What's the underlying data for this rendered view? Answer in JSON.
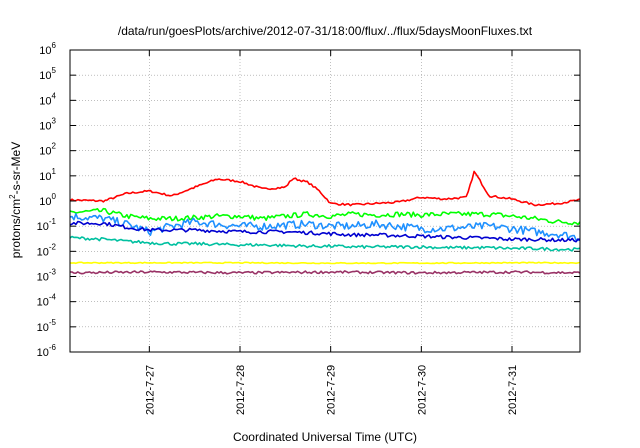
{
  "chart_data": {
    "type": "line",
    "title": "/data/run/goesPlots/archive/2012-07-31/18:00/flux/../flux/5daysMoonFluxes.txt",
    "xlabel": "Coordinated Universal Time (UTC)",
    "ylabel_parts": [
      "protons/cm",
      "2",
      "-s-sr-MeV"
    ],
    "y_scale": "log",
    "ylim": [
      1e-06,
      1000000.0
    ],
    "y_ticks": [
      {
        "base": "10",
        "exp": "6",
        "value": 1000000.0
      },
      {
        "base": "10",
        "exp": "5",
        "value": 100000.0
      },
      {
        "base": "10",
        "exp": "4",
        "value": 10000.0
      },
      {
        "base": "10",
        "exp": "3",
        "value": 1000.0
      },
      {
        "base": "10",
        "exp": "2",
        "value": 100.0
      },
      {
        "base": "10",
        "exp": "1",
        "value": 10.0
      },
      {
        "base": "10",
        "exp": "0",
        "value": 1.0
      },
      {
        "base": "10",
        "exp": "-1",
        "value": 0.1
      },
      {
        "base": "10",
        "exp": "-2",
        "value": 0.01
      },
      {
        "base": "10",
        "exp": "-3",
        "value": 0.001
      },
      {
        "base": "10",
        "exp": "-4",
        "value": 0.0001
      },
      {
        "base": "10",
        "exp": "-5",
        "value": 1e-05
      },
      {
        "base": "10",
        "exp": "-6",
        "value": 1e-06
      }
    ],
    "xlim": [
      "2012-07-26 03:00",
      "2012-07-31 18:00"
    ],
    "x_ticks": [
      "2012-7-27",
      "2012-7-28",
      "2012-7-29",
      "2012-7-30",
      "2012-7-31"
    ],
    "grid": true,
    "legend": "none",
    "series": [
      {
        "color": "#ff0000",
        "x": [
          "2012-07-26 03:00",
          "2012-07-26 12:00",
          "2012-07-26 18:00",
          "2012-07-27 00:00",
          "2012-07-27 06:00",
          "2012-07-27 12:00",
          "2012-07-27 18:00",
          "2012-07-28 00:00",
          "2012-07-28 06:00",
          "2012-07-28 12:00",
          "2012-07-28 14:00",
          "2012-07-28 18:00",
          "2012-07-28 21:00",
          "2012-07-29 00:00",
          "2012-07-29 06:00",
          "2012-07-29 12:00",
          "2012-07-29 18:00",
          "2012-07-30 00:00",
          "2012-07-30 06:00",
          "2012-07-30 12:00",
          "2012-07-30 14:00",
          "2012-07-30 18:00",
          "2012-07-31 00:00",
          "2012-07-31 06:00",
          "2012-07-31 12:00",
          "2012-07-31 18:00"
        ],
        "y": [
          1.1,
          1.0,
          2.0,
          2.5,
          1.6,
          3.5,
          7.5,
          6.0,
          3.0,
          3.5,
          8.0,
          5.5,
          2.5,
          0.8,
          0.7,
          0.8,
          0.9,
          1.4,
          1.2,
          1.4,
          15,
          1.6,
          1.2,
          0.7,
          0.8,
          1.1
        ]
      },
      {
        "color": "#00ff00",
        "x": [
          "2012-07-26 03:00",
          "2012-07-26 12:00",
          "2012-07-26 18:00",
          "2012-07-27 00:00",
          "2012-07-27 06:00",
          "2012-07-27 12:00",
          "2012-07-27 18:00",
          "2012-07-28 00:00",
          "2012-07-28 06:00",
          "2012-07-28 12:00",
          "2012-07-28 18:00",
          "2012-07-29 00:00",
          "2012-07-29 06:00",
          "2012-07-29 12:00",
          "2012-07-29 18:00",
          "2012-07-30 00:00",
          "2012-07-30 06:00",
          "2012-07-30 12:00",
          "2012-07-30 18:00",
          "2012-07-31 00:00",
          "2012-07-31 06:00",
          "2012-07-31 12:00",
          "2012-07-31 18:00"
        ],
        "y": [
          0.35,
          0.4,
          0.25,
          0.2,
          0.2,
          0.22,
          0.25,
          0.25,
          0.2,
          0.25,
          0.3,
          0.25,
          0.3,
          0.28,
          0.3,
          0.28,
          0.3,
          0.3,
          0.3,
          0.25,
          0.2,
          0.15,
          0.14
        ]
      },
      {
        "color": "#1e90ff",
        "x": [
          "2012-07-26 03:00",
          "2012-07-26 12:00",
          "2012-07-26 18:00",
          "2012-07-27 00:00",
          "2012-07-27 06:00",
          "2012-07-27 12:00",
          "2012-07-27 18:00",
          "2012-07-28 00:00",
          "2012-07-28 06:00",
          "2012-07-28 12:00",
          "2012-07-28 18:00",
          "2012-07-29 00:00",
          "2012-07-29 06:00",
          "2012-07-29 12:00",
          "2012-07-29 18:00",
          "2012-07-30 00:00",
          "2012-07-30 06:00",
          "2012-07-30 12:00",
          "2012-07-30 18:00",
          "2012-07-31 00:00",
          "2012-07-31 06:00",
          "2012-07-31 12:00",
          "2012-07-31 18:00"
        ],
        "y": [
          0.25,
          0.2,
          0.12,
          0.06,
          0.1,
          0.15,
          0.12,
          0.1,
          0.1,
          0.11,
          0.12,
          0.1,
          0.1,
          0.12,
          0.1,
          0.08,
          0.08,
          0.09,
          0.1,
          0.08,
          0.06,
          0.05,
          0.035
        ]
      },
      {
        "color": "#0000d0",
        "x": [
          "2012-07-26 03:00",
          "2012-07-26 12:00",
          "2012-07-26 18:00",
          "2012-07-27 00:00",
          "2012-07-27 06:00",
          "2012-07-27 12:00",
          "2012-07-27 18:00",
          "2012-07-28 00:00",
          "2012-07-28 06:00",
          "2012-07-28 12:00",
          "2012-07-28 18:00",
          "2012-07-29 00:00",
          "2012-07-29 06:00",
          "2012-07-29 12:00",
          "2012-07-29 18:00",
          "2012-07-30 00:00",
          "2012-07-30 06:00",
          "2012-07-30 12:00",
          "2012-07-30 18:00",
          "2012-07-31 00:00",
          "2012-07-31 06:00",
          "2012-07-31 12:00",
          "2012-07-31 18:00"
        ],
        "y": [
          0.13,
          0.13,
          0.09,
          0.07,
          0.07,
          0.07,
          0.065,
          0.06,
          0.06,
          0.06,
          0.055,
          0.05,
          0.045,
          0.045,
          0.042,
          0.04,
          0.037,
          0.035,
          0.033,
          0.03,
          0.03,
          0.028,
          0.028
        ]
      },
      {
        "color": "#00c0a0",
        "x": [
          "2012-07-26 03:00",
          "2012-07-26 12:00",
          "2012-07-26 18:00",
          "2012-07-27 00:00",
          "2012-07-27 06:00",
          "2012-07-27 12:00",
          "2012-07-27 18:00",
          "2012-07-28 00:00",
          "2012-07-28 06:00",
          "2012-07-28 12:00",
          "2012-07-28 18:00",
          "2012-07-29 00:00",
          "2012-07-29 06:00",
          "2012-07-29 12:00",
          "2012-07-29 18:00",
          "2012-07-30 00:00",
          "2012-07-30 06:00",
          "2012-07-30 12:00",
          "2012-07-30 18:00",
          "2012-07-31 00:00",
          "2012-07-31 06:00",
          "2012-07-31 12:00",
          "2012-07-31 18:00"
        ],
        "y": [
          0.035,
          0.03,
          0.025,
          0.022,
          0.02,
          0.02,
          0.019,
          0.018,
          0.018,
          0.017,
          0.016,
          0.016,
          0.015,
          0.015,
          0.015,
          0.015,
          0.014,
          0.014,
          0.014,
          0.013,
          0.013,
          0.012,
          0.012
        ]
      },
      {
        "color": "#ffff00",
        "x": [
          "2012-07-26 03:00",
          "2012-07-27 00:00",
          "2012-07-28 00:00",
          "2012-07-29 00:00",
          "2012-07-30 00:00",
          "2012-07-31 00:00",
          "2012-07-31 18:00"
        ],
        "y": [
          0.0035,
          0.0035,
          0.0035,
          0.0034,
          0.0034,
          0.0035,
          0.0035
        ]
      },
      {
        "color": "#993366",
        "x": [
          "2012-07-26 03:00",
          "2012-07-27 00:00",
          "2012-07-28 00:00",
          "2012-07-29 00:00",
          "2012-07-30 00:00",
          "2012-07-31 00:00",
          "2012-07-31 18:00"
        ],
        "y": [
          0.0014,
          0.0015,
          0.0014,
          0.0015,
          0.0014,
          0.0015,
          0.0014
        ]
      }
    ]
  }
}
